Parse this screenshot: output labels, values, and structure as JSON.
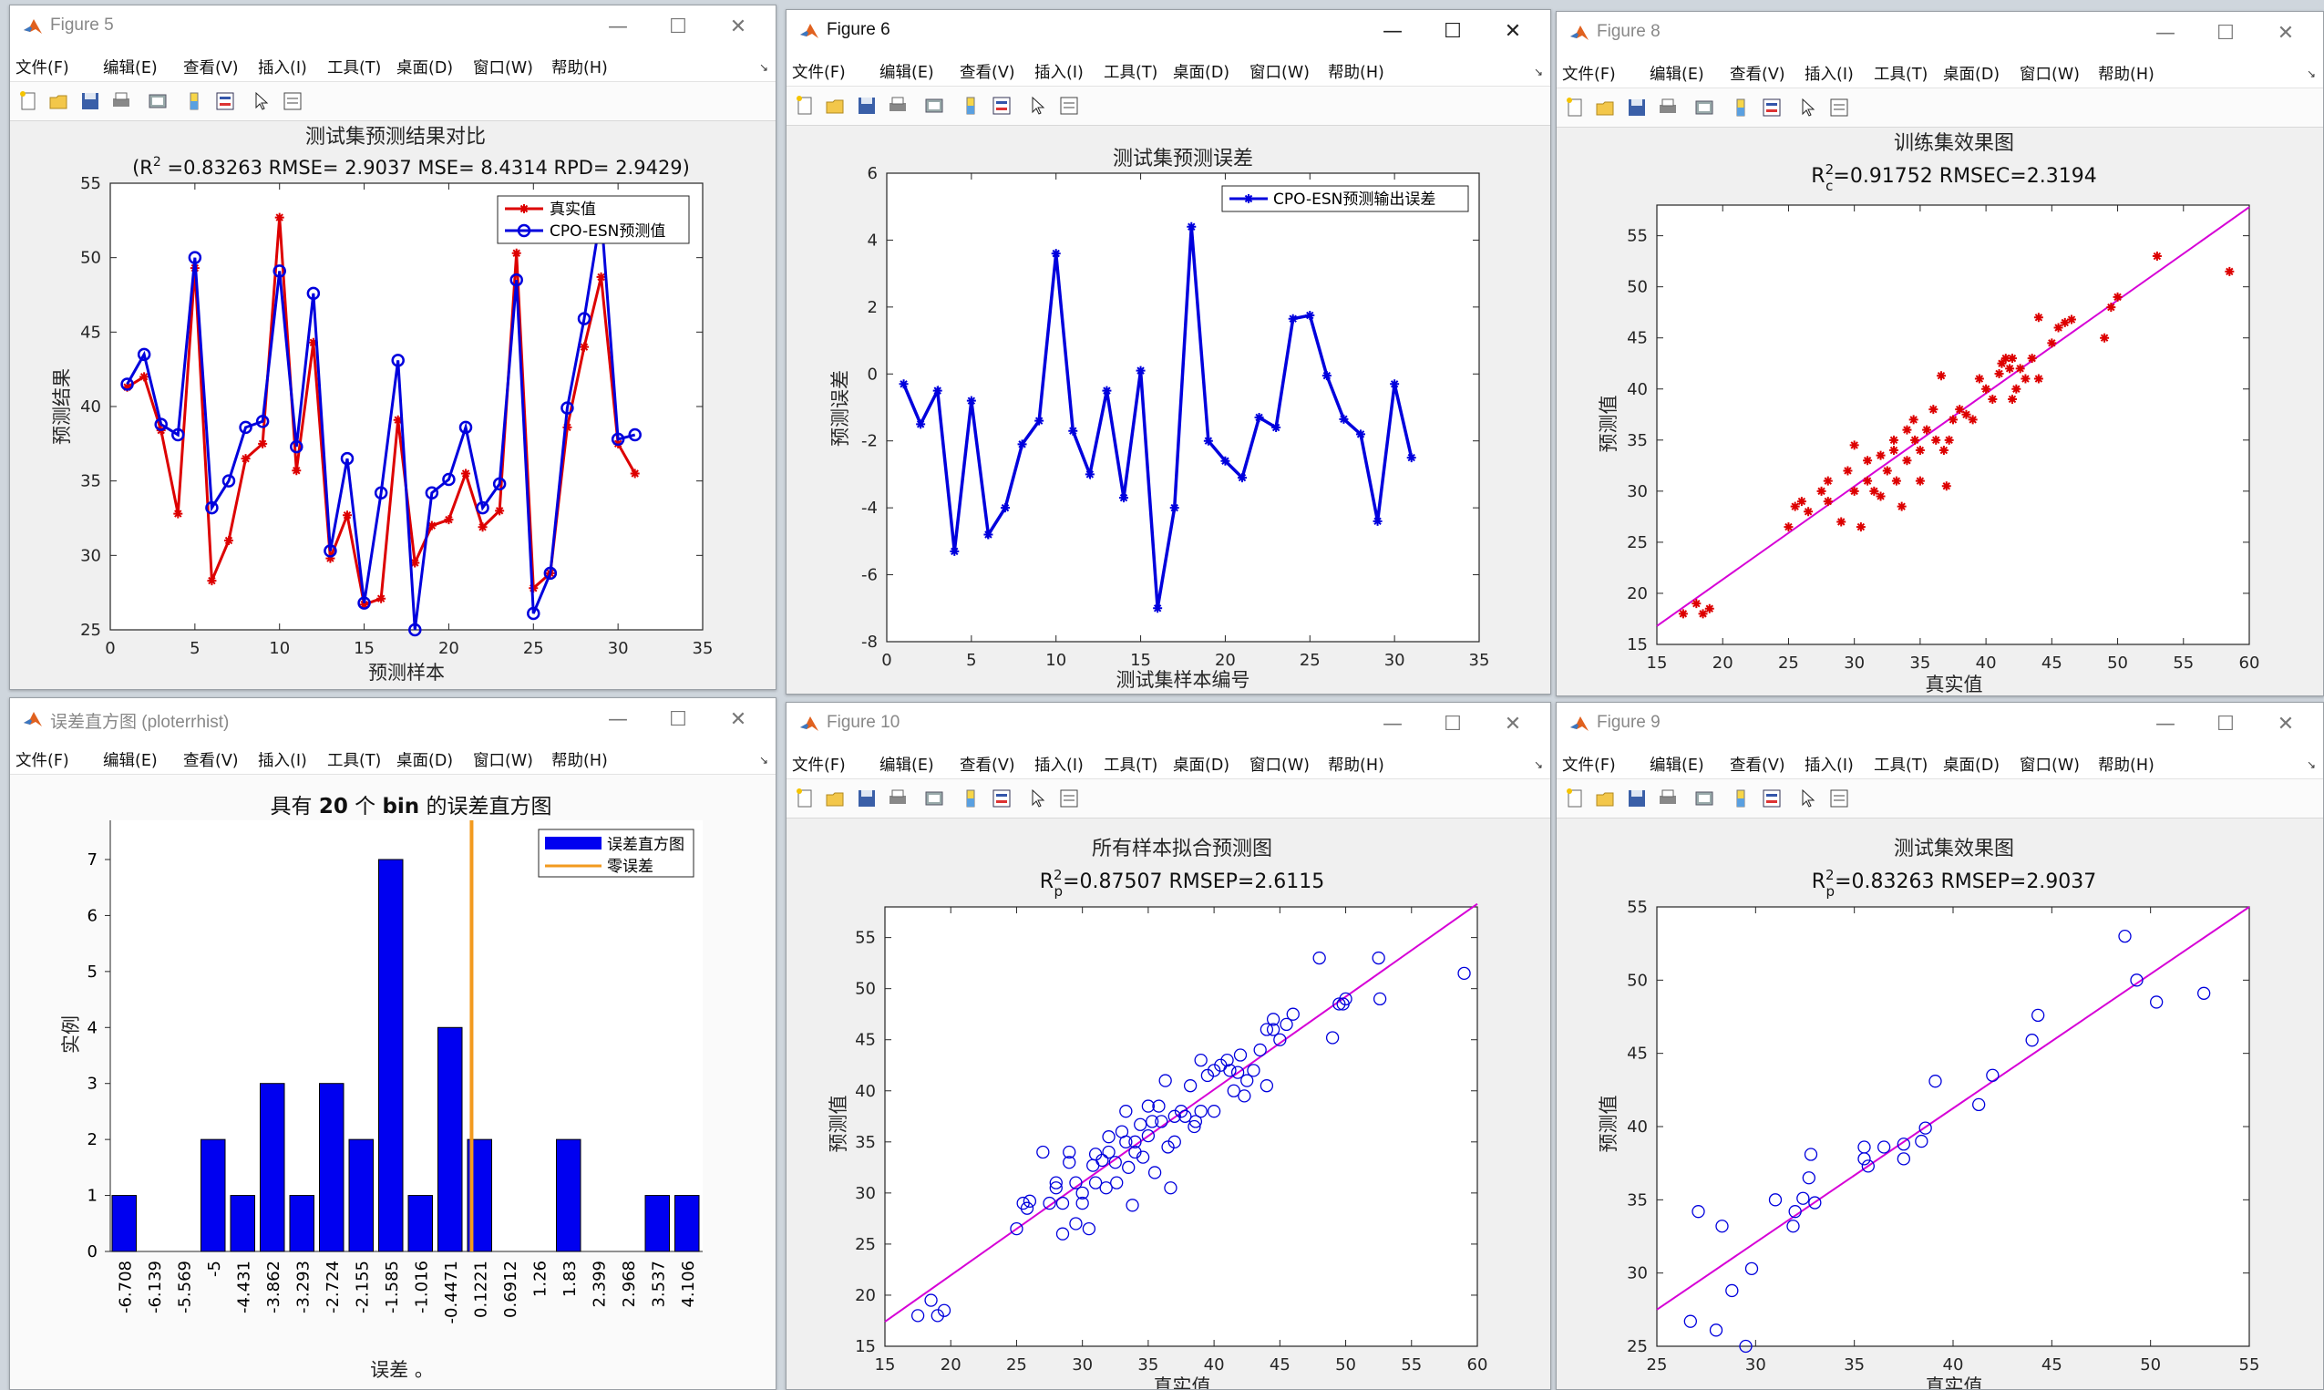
{
  "windows": [
    {
      "id": "w5",
      "title": "Figure 5",
      "active": false
    },
    {
      "id": "w6",
      "title": "Figure 6",
      "active": true
    },
    {
      "id": "w8",
      "title": "Figure 8",
      "active": false
    },
    {
      "id": "wh",
      "title": "误差直方图 (ploterrhist)",
      "active": false
    },
    {
      "id": "w10",
      "title": "Figure 10",
      "active": false
    },
    {
      "id": "w9",
      "title": "Figure 9",
      "active": false
    }
  ],
  "menu": [
    "文件(F)",
    "编辑(E)",
    "查看(V)",
    "插入(I)",
    "工具(T)",
    "桌面(D)",
    "窗口(W)",
    "帮助(H)"
  ],
  "controls": {
    "minimize": "—",
    "maximize": "☐",
    "close": "✕"
  },
  "toolbar_icons": [
    "new-figure-icon",
    "open-file-icon",
    "save-icon",
    "print-icon",
    "print-preview-icon",
    "insert-colorbar-icon",
    "insert-legend-icon",
    "edit-plot-icon",
    "property-inspector-icon"
  ],
  "colors": {
    "red": "#dd0000",
    "blue": "#0000dd",
    "magenta": "#d600d6",
    "orange": "#f29a1f",
    "bar": "#0000f0"
  },
  "charts": {
    "fig5": {
      "title": "测试集预测结果对比",
      "subtitle_pre": "(R",
      "subtitle_sup": "2",
      "subtitle_post": " =0.83263 RMSE= 2.9037 MSE= 8.4314 RPD= 2.9429)",
      "xlabel": "预测样本",
      "ylabel": "预测结果",
      "xticks": [
        "0",
        "5",
        "10",
        "15",
        "20",
        "25",
        "30",
        "35"
      ],
      "yticks": [
        "25",
        "30",
        "35",
        "40",
        "45",
        "50",
        "55"
      ],
      "legend": [
        "真实值",
        "CPO-ESN预测值"
      ]
    },
    "fig6": {
      "title": "测试集预测误差",
      "xlabel": "测试集样本编号",
      "ylabel": "预测误差",
      "xticks": [
        "0",
        "5",
        "10",
        "15",
        "20",
        "25",
        "30",
        "35"
      ],
      "yticks": [
        "-8",
        "-6",
        "-4",
        "-2",
        "0",
        "2",
        "4",
        "6"
      ],
      "legend": [
        "CPO-ESN预测输出误差"
      ]
    },
    "fig8": {
      "title": "训练集效果图",
      "r_pre": "R",
      "r_sup": "2",
      "r_sub": "c",
      "r_post": "=0.91752  RMSEC=2.3194",
      "xlabel": "真实值",
      "ylabel": "预测值",
      "xticks": [
        "15",
        "20",
        "25",
        "30",
        "35",
        "40",
        "45",
        "50",
        "55",
        "60"
      ],
      "yticks": [
        "15",
        "20",
        "25",
        "30",
        "35",
        "40",
        "45",
        "50",
        "55"
      ]
    },
    "hist": {
      "title_pre": "具有 ",
      "title_n": "20",
      "title_mid": " 个 ",
      "title_bin": "bin",
      "title_post": " 的误差直方图",
      "xlabel": "误差 。",
      "ylabel": "实例",
      "yticks": [
        "0",
        "1",
        "2",
        "3",
        "4",
        "5",
        "6",
        "7"
      ],
      "legend": [
        "误差直方图",
        "零误差"
      ]
    },
    "fig10": {
      "title": "所有样本拟合预测图",
      "r_pre": "R",
      "r_sup": "2",
      "r_sub": "p",
      "r_post": "=0.87507  RMSEP=2.6115",
      "xlabel": "真实值",
      "ylabel": "预测值",
      "xticks": [
        "15",
        "20",
        "25",
        "30",
        "35",
        "40",
        "45",
        "50",
        "55",
        "60"
      ],
      "yticks": [
        "15",
        "20",
        "25",
        "30",
        "35",
        "40",
        "45",
        "50",
        "55"
      ]
    },
    "fig9": {
      "title": "测试集效果图",
      "r_pre": "R",
      "r_sup": "2",
      "r_sub": "p",
      "r_post": "=0.83263  RMSEP=2.9037",
      "xlabel": "真实值",
      "ylabel": "预测值",
      "xticks": [
        "25",
        "30",
        "35",
        "40",
        "45",
        "50",
        "55"
      ],
      "yticks": [
        "25",
        "30",
        "35",
        "40",
        "45",
        "50",
        "55"
      ]
    }
  },
  "chart_data": [
    {
      "type": "line",
      "chart": "fig5",
      "xlim": [
        0,
        35
      ],
      "ylim": [
        25,
        55
      ],
      "x": [
        1,
        2,
        3,
        4,
        5,
        6,
        7,
        8,
        9,
        10,
        11,
        12,
        13,
        14,
        15,
        16,
        17,
        18,
        19,
        20,
        21,
        22,
        23,
        24,
        25,
        26,
        27,
        28,
        29,
        30,
        31
      ],
      "series": [
        {
          "name": "真实值",
          "values": [
            41.3,
            42.0,
            38.4,
            32.8,
            49.3,
            28.3,
            31.0,
            36.5,
            37.5,
            52.7,
            35.7,
            44.3,
            29.8,
            32.7,
            26.7,
            27.1,
            39.1,
            29.5,
            32.0,
            32.4,
            35.5,
            31.9,
            33.0,
            50.3,
            27.8,
            28.8,
            38.6,
            44.0,
            48.7,
            37.5,
            35.5
          ]
        },
        {
          "name": "CPO-ESN预测值",
          "values": [
            41.5,
            43.5,
            38.8,
            38.1,
            50.0,
            33.2,
            35.0,
            38.6,
            39.0,
            49.1,
            37.3,
            47.6,
            30.3,
            36.5,
            26.8,
            34.2,
            43.1,
            25.0,
            34.2,
            35.1,
            38.6,
            33.2,
            34.8,
            48.5,
            26.1,
            28.8,
            39.9,
            45.9,
            53.0,
            37.8,
            38.1
          ]
        }
      ]
    },
    {
      "type": "line",
      "chart": "fig6",
      "xlim": [
        0,
        35
      ],
      "ylim": [
        -8,
        6
      ],
      "x": [
        1,
        2,
        3,
        4,
        5,
        6,
        7,
        8,
        9,
        10,
        11,
        12,
        13,
        14,
        15,
        16,
        17,
        18,
        19,
        20,
        21,
        22,
        23,
        24,
        25,
        26,
        27,
        28,
        29,
        30,
        31
      ],
      "series": [
        {
          "name": "CPO-ESN预测输出误差",
          "values": [
            -0.3,
            -1.5,
            -0.5,
            -5.3,
            -0.8,
            -4.8,
            -4.0,
            -2.1,
            -1.4,
            3.6,
            -1.7,
            -3.0,
            -0.5,
            -3.7,
            0.1,
            -7.0,
            -4.0,
            4.4,
            -2.0,
            -2.6,
            -3.1,
            -1.3,
            -1.6,
            1.65,
            1.75,
            -0.05,
            -1.35,
            -1.8,
            -4.4,
            -0.3,
            -2.5
          ]
        }
      ]
    },
    {
      "type": "scatter",
      "chart": "fig8",
      "xlim": [
        15,
        60
      ],
      "ylim": [
        15,
        58
      ],
      "fit_line": {
        "x": [
          15,
          60
        ],
        "y": [
          16.8,
          57.8
        ]
      },
      "points": [
        [
          17,
          18
        ],
        [
          18,
          19
        ],
        [
          18.5,
          18
        ],
        [
          19,
          18.5
        ],
        [
          25,
          26.5
        ],
        [
          25.5,
          28.5
        ],
        [
          26,
          29
        ],
        [
          26.5,
          28
        ],
        [
          27.5,
          30
        ],
        [
          28,
          31
        ],
        [
          28,
          29
        ],
        [
          29,
          27
        ],
        [
          29.5,
          32
        ],
        [
          30,
          34.5
        ],
        [
          30,
          30
        ],
        [
          30.5,
          26.5
        ],
        [
          31,
          33
        ],
        [
          31,
          31
        ],
        [
          31.5,
          30
        ],
        [
          32,
          33.5
        ],
        [
          32,
          29.5
        ],
        [
          32.5,
          32
        ],
        [
          33,
          35
        ],
        [
          33,
          34
        ],
        [
          33.2,
          31
        ],
        [
          33.6,
          28.5
        ],
        [
          34,
          36
        ],
        [
          34,
          33
        ],
        [
          34.5,
          37
        ],
        [
          34.6,
          35
        ],
        [
          35,
          34
        ],
        [
          35,
          31
        ],
        [
          35.5,
          36
        ],
        [
          36,
          38
        ],
        [
          36.2,
          35
        ],
        [
          36.6,
          41.3
        ],
        [
          36.8,
          34
        ],
        [
          37,
          30.5
        ],
        [
          37.2,
          35
        ],
        [
          37.5,
          37
        ],
        [
          38,
          38
        ],
        [
          38.5,
          37.5
        ],
        [
          39,
          37
        ],
        [
          39.5,
          41
        ],
        [
          40,
          40
        ],
        [
          40.5,
          39
        ],
        [
          41,
          41.5
        ],
        [
          41.2,
          42.5
        ],
        [
          41.5,
          43
        ],
        [
          41.8,
          42
        ],
        [
          42,
          43
        ],
        [
          42,
          39
        ],
        [
          42.3,
          40
        ],
        [
          42.6,
          42
        ],
        [
          43,
          41
        ],
        [
          43.5,
          43
        ],
        [
          44,
          47
        ],
        [
          44,
          41
        ],
        [
          45,
          44.5
        ],
        [
          45.5,
          46
        ],
        [
          46,
          46.5
        ],
        [
          46.5,
          46.8
        ],
        [
          49,
          45
        ],
        [
          49.5,
          48
        ],
        [
          50,
          49
        ],
        [
          53,
          53
        ],
        [
          58.5,
          51.5
        ]
      ]
    },
    {
      "type": "bar",
      "chart": "hist",
      "categories": [
        "-6.708",
        "-6.139",
        "-5.569",
        "-5",
        "-4.431",
        "-3.862",
        "-3.293",
        "-2.724",
        "-2.155",
        "-1.585",
        "-1.016",
        "-0.4471",
        "0.1221",
        "0.6912",
        "1.26",
        "1.83",
        "2.399",
        "2.968",
        "3.537",
        "4.106"
      ],
      "values": [
        1,
        0,
        0,
        2,
        1,
        3,
        1,
        3,
        2,
        7,
        1,
        4,
        2,
        0,
        0,
        2,
        0,
        0,
        1,
        1
      ],
      "zero_error": -0.05,
      "ylim": [
        0,
        7.7
      ]
    },
    {
      "type": "scatter",
      "chart": "fig10",
      "xlim": [
        15,
        60
      ],
      "ylim": [
        15,
        58
      ],
      "fit_line": {
        "x": [
          15,
          60
        ],
        "y": [
          17.4,
          58.3
        ]
      },
      "points": [
        [
          17.5,
          18
        ],
        [
          18.5,
          19.5
        ],
        [
          19,
          18
        ],
        [
          19.5,
          18.5
        ],
        [
          25,
          26.5
        ],
        [
          25.5,
          29
        ],
        [
          25.8,
          28.5
        ],
        [
          26,
          29.2
        ],
        [
          27,
          34
        ],
        [
          27.5,
          29
        ],
        [
          28,
          31
        ],
        [
          28,
          30.5
        ],
        [
          28.5,
          26
        ],
        [
          28.5,
          29
        ],
        [
          29,
          34
        ],
        [
          29,
          33
        ],
        [
          29.5,
          31
        ],
        [
          29.5,
          27
        ],
        [
          30,
          30
        ],
        [
          30,
          29
        ],
        [
          30.5,
          26.5
        ],
        [
          30.8,
          32.7
        ],
        [
          31,
          31
        ],
        [
          31,
          33.8
        ],
        [
          31.5,
          33.2
        ],
        [
          31.8,
          30.5
        ],
        [
          32,
          35.5
        ],
        [
          32,
          34
        ],
        [
          32.5,
          33
        ],
        [
          32.6,
          31
        ],
        [
          33,
          36
        ],
        [
          33.3,
          35
        ],
        [
          33.3,
          38
        ],
        [
          33.5,
          32.5
        ],
        [
          33.8,
          28.8
        ],
        [
          34,
          35
        ],
        [
          34,
          34
        ],
        [
          34.4,
          36.7
        ],
        [
          34.6,
          33.5
        ],
        [
          35,
          38.5
        ],
        [
          35,
          35.6
        ],
        [
          35.3,
          37
        ],
        [
          35.5,
          32
        ],
        [
          35.8,
          38.5
        ],
        [
          36,
          37
        ],
        [
          36.3,
          41
        ],
        [
          36.5,
          34.5
        ],
        [
          36.7,
          30.5
        ],
        [
          37,
          35
        ],
        [
          37,
          37.5
        ],
        [
          37.5,
          38
        ],
        [
          37.8,
          37.5
        ],
        [
          38.2,
          40.5
        ],
        [
          38.6,
          37
        ],
        [
          38.5,
          36.5
        ],
        [
          39,
          38
        ],
        [
          39,
          43
        ],
        [
          39.5,
          41.5
        ],
        [
          40,
          38
        ],
        [
          40,
          42
        ],
        [
          40.5,
          42.5
        ],
        [
          41,
          43
        ],
        [
          41.2,
          42
        ],
        [
          41.5,
          40
        ],
        [
          41.8,
          41.8
        ],
        [
          42,
          43.5
        ],
        [
          42.3,
          39.5
        ],
        [
          42.5,
          41
        ],
        [
          43,
          42
        ],
        [
          43.5,
          44
        ],
        [
          44,
          46
        ],
        [
          44,
          40.5
        ],
        [
          44.5,
          47
        ],
        [
          44.5,
          46
        ],
        [
          45,
          45
        ],
        [
          45.5,
          46.5
        ],
        [
          46,
          47.5
        ],
        [
          48,
          53
        ],
        [
          49,
          45.2
        ],
        [
          49.5,
          48.5
        ],
        [
          49.8,
          48.5
        ],
        [
          50,
          49
        ],
        [
          52.5,
          53
        ],
        [
          52.6,
          49
        ],
        [
          59,
          51.5
        ]
      ]
    },
    {
      "type": "scatter",
      "chart": "fig9",
      "xlim": [
        25,
        55
      ],
      "ylim": [
        25,
        55
      ],
      "fit_line": {
        "x": [
          25,
          55
        ],
        "y": [
          27.5,
          55
        ]
      },
      "points": [
        [
          26.7,
          26.7
        ],
        [
          27.1,
          34.2
        ],
        [
          28,
          26.1
        ],
        [
          28.3,
          33.2
        ],
        [
          28.8,
          28.8
        ],
        [
          29.5,
          25.0
        ],
        [
          29.8,
          30.3
        ],
        [
          31,
          35.0
        ],
        [
          31.9,
          33.2
        ],
        [
          32,
          34.2
        ],
        [
          32.4,
          35.1
        ],
        [
          32.7,
          36.5
        ],
        [
          32.8,
          38.1
        ],
        [
          33,
          34.8
        ],
        [
          35.5,
          38.6
        ],
        [
          35.5,
          37.8
        ],
        [
          35.7,
          37.3
        ],
        [
          36.5,
          38.6
        ],
        [
          37.5,
          38.8
        ],
        [
          37.5,
          37.8
        ],
        [
          38.4,
          39.0
        ],
        [
          38.6,
          39.9
        ],
        [
          39.1,
          43.1
        ],
        [
          41.3,
          41.5
        ],
        [
          42,
          43.5
        ],
        [
          44,
          45.9
        ],
        [
          44.3,
          47.6
        ],
        [
          48.7,
          53.0
        ],
        [
          49.3,
          50.0
        ],
        [
          50.3,
          48.5
        ],
        [
          52.7,
          49.1
        ]
      ]
    }
  ]
}
